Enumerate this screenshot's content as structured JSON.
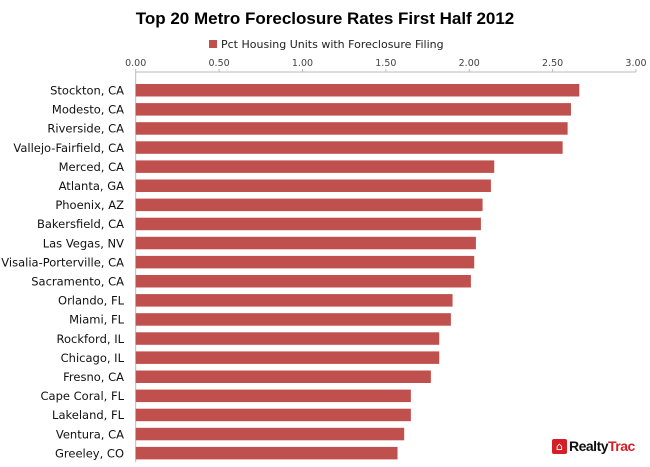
{
  "chart_data": {
    "type": "bar",
    "orientation": "horizontal",
    "title": "Top 20 Metro Foreclosure Rates First Half 2012",
    "xlim": [
      0,
      3
    ],
    "xticks": [
      "0.00",
      "0.50",
      "1.00",
      "1.50",
      "2.00",
      "2.50",
      "3.00"
    ],
    "xaxis_position": "top",
    "grid": false,
    "legend_position": "top",
    "categories": [
      "Stockton, CA",
      "Modesto, CA",
      "Riverside, CA",
      "Vallejo-Fairfield, CA",
      "Merced, CA",
      "Atlanta, GA",
      "Phoenix, AZ",
      "Bakersfield, CA",
      "Las Vegas, NV",
      "Visalia-Porterville, CA",
      "Sacramento, CA",
      "Orlando, FL",
      "Miami, FL",
      "Rockford, IL",
      "Chicago, IL",
      "Fresno, CA",
      "Cape Coral, FL",
      "Lakeland, FL",
      "Ventura, CA",
      "Greeley, CO"
    ],
    "series": [
      {
        "name": "Pct Housing Units with Foreclosure Filing",
        "color": "#c0504d",
        "values": [
          2.66,
          2.61,
          2.59,
          2.56,
          2.15,
          2.13,
          2.08,
          2.07,
          2.04,
          2.03,
          2.01,
          1.9,
          1.89,
          1.82,
          1.82,
          1.77,
          1.65,
          1.65,
          1.61,
          1.57
        ]
      }
    ]
  },
  "logo": {
    "text_a": "Realty",
    "text_b": "Trac",
    "icon": "house-icon"
  }
}
